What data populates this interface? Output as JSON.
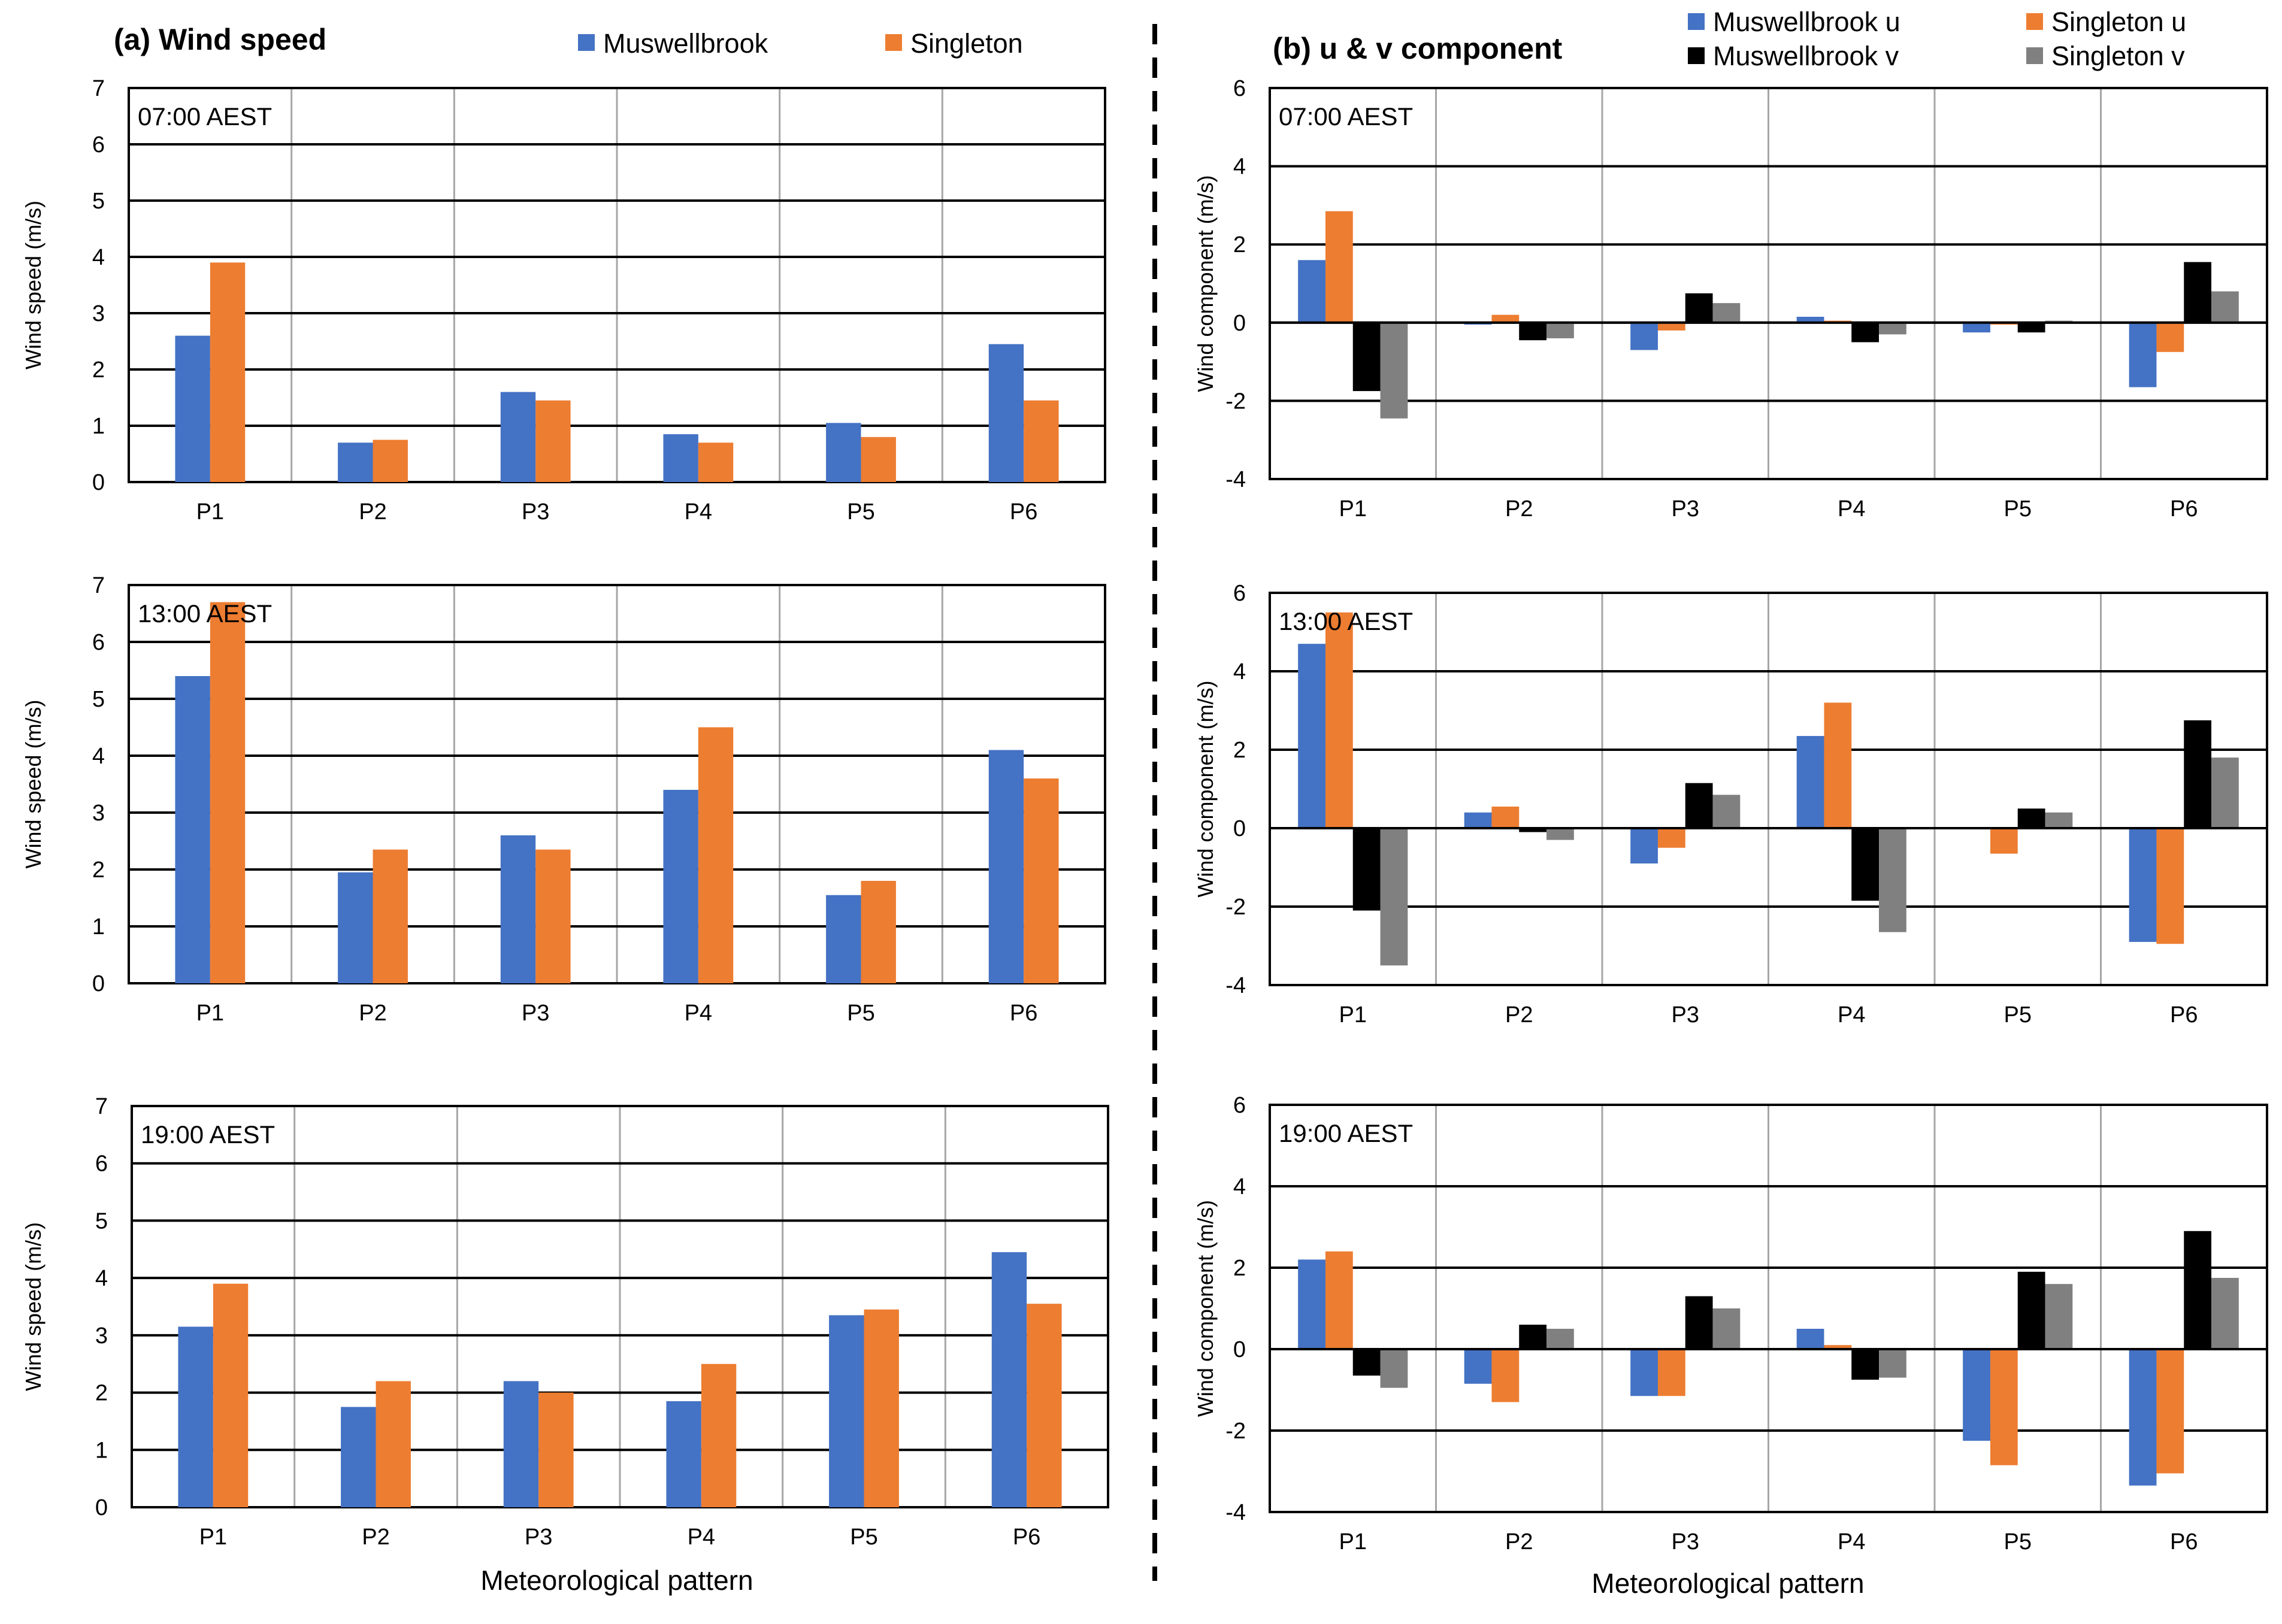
{
  "figure": {
    "divider": "dashed vertical line",
    "colors": {
      "muswellbrook": "#4472C4",
      "singleton": "#ED7D31",
      "muswellbrook_v": "#000000",
      "singleton_v": "#808080",
      "grid_h": "#000000",
      "grid_v": "#A6A6A6"
    }
  },
  "panel_a": {
    "title": "(a) Wind speed",
    "legend": [
      "Muswellbrook",
      "Singleton"
    ],
    "ylabel": "Wind speed (m/s)",
    "xlabel": "Meteorological pattern"
  },
  "panel_b": {
    "title": "(b) u & v component",
    "legend": [
      "Muswellbrook u",
      "Singleton u",
      "Muswellbrook v",
      "Singleton v"
    ],
    "ylabel": "Wind component (m/s)",
    "xlabel": "Meteorological pattern"
  },
  "chart_data": [
    {
      "type": "bar",
      "panel": "a",
      "label": "07:00 AEST",
      "categories": [
        "P1",
        "P2",
        "P3",
        "P4",
        "P5",
        "P6"
      ],
      "ylabel": "Wind speed (m/s)",
      "xlabel": "",
      "ylim": [
        0,
        7
      ],
      "yticks": [
        0,
        1,
        2,
        3,
        4,
        5,
        6,
        7
      ],
      "series": [
        {
          "name": "Muswellbrook",
          "color": "#4472C4",
          "values": [
            2.6,
            0.7,
            1.6,
            0.85,
            1.05,
            2.45
          ]
        },
        {
          "name": "Singleton",
          "color": "#ED7D31",
          "values": [
            3.9,
            0.75,
            1.45,
            0.7,
            0.8,
            1.45
          ]
        }
      ]
    },
    {
      "type": "bar",
      "panel": "a",
      "label": "13:00 AEST",
      "categories": [
        "P1",
        "P2",
        "P3",
        "P4",
        "P5",
        "P6"
      ],
      "ylabel": "Wind speed (m/s)",
      "xlabel": "",
      "ylim": [
        0,
        7
      ],
      "yticks": [
        0,
        1,
        2,
        3,
        4,
        5,
        6,
        7
      ],
      "series": [
        {
          "name": "Muswellbrook",
          "color": "#4472C4",
          "values": [
            5.4,
            1.95,
            2.6,
            3.4,
            1.55,
            4.1
          ]
        },
        {
          "name": "Singleton",
          "color": "#ED7D31",
          "values": [
            6.7,
            2.35,
            2.35,
            4.5,
            1.8,
            3.6
          ]
        }
      ]
    },
    {
      "type": "bar",
      "panel": "a",
      "label": "19:00 AEST",
      "categories": [
        "P1",
        "P2",
        "P3",
        "P4",
        "P5",
        "P6"
      ],
      "ylabel": "Wind speed (m/s)",
      "xlabel": "Meteorological pattern",
      "ylim": [
        0,
        7
      ],
      "yticks": [
        0,
        1,
        2,
        3,
        4,
        5,
        6,
        7
      ],
      "series": [
        {
          "name": "Muswellbrook",
          "color": "#4472C4",
          "values": [
            3.15,
            1.75,
            2.2,
            1.85,
            3.35,
            4.45
          ]
        },
        {
          "name": "Singleton",
          "color": "#ED7D31",
          "values": [
            3.9,
            2.2,
            2.0,
            2.5,
            3.45,
            3.55
          ]
        }
      ]
    },
    {
      "type": "bar",
      "panel": "b",
      "label": "07:00 AEST",
      "categories": [
        "P1",
        "P2",
        "P3",
        "P4",
        "P5",
        "P6"
      ],
      "ylabel": "Wind component (m/s)",
      "xlabel": "",
      "ylim": [
        -4,
        6
      ],
      "yticks": [
        -4,
        -2,
        0,
        2,
        4,
        6
      ],
      "series": [
        {
          "name": "Muswellbrook u",
          "color": "#4472C4",
          "values": [
            1.6,
            -0.05,
            -0.7,
            0.15,
            -0.25,
            -1.65
          ]
        },
        {
          "name": "Singleton u",
          "color": "#ED7D31",
          "values": [
            2.85,
            0.2,
            -0.2,
            0.05,
            -0.05,
            -0.75
          ]
        },
        {
          "name": "Muswellbrook v",
          "color": "#000000",
          "values": [
            -1.75,
            -0.45,
            0.75,
            -0.5,
            -0.25,
            1.55
          ]
        },
        {
          "name": "Singleton v",
          "color": "#808080",
          "values": [
            -2.45,
            -0.4,
            0.5,
            -0.3,
            0.05,
            0.8
          ]
        }
      ]
    },
    {
      "type": "bar",
      "panel": "b",
      "label": "13:00 AEST",
      "categories": [
        "P1",
        "P2",
        "P3",
        "P4",
        "P5",
        "P6"
      ],
      "ylabel": "Wind component (m/s)",
      "xlabel": "",
      "ylim": [
        -4,
        6
      ],
      "yticks": [
        -4,
        -2,
        0,
        2,
        4,
        6
      ],
      "series": [
        {
          "name": "Muswellbrook u",
          "color": "#4472C4",
          "values": [
            4.7,
            0.4,
            -0.9,
            2.35,
            0.0,
            -2.9
          ]
        },
        {
          "name": "Singleton u",
          "color": "#ED7D31",
          "values": [
            5.5,
            0.55,
            -0.5,
            3.2,
            -0.65,
            -2.95
          ]
        },
        {
          "name": "Muswellbrook v",
          "color": "#000000",
          "values": [
            -2.1,
            -0.1,
            1.15,
            -1.85,
            0.5,
            2.75
          ]
        },
        {
          "name": "Singleton v",
          "color": "#808080",
          "values": [
            -3.5,
            -0.3,
            0.85,
            -2.65,
            0.4,
            1.8
          ]
        }
      ]
    },
    {
      "type": "bar",
      "panel": "b",
      "label": "19:00 AEST",
      "categories": [
        "P1",
        "P2",
        "P3",
        "P4",
        "P5",
        "P6"
      ],
      "ylabel": "Wind component (m/s)",
      "xlabel": "Meteorological pattern",
      "ylim": [
        -4,
        6
      ],
      "yticks": [
        -4,
        -2,
        0,
        2,
        4,
        6
      ],
      "series": [
        {
          "name": "Muswellbrook u",
          "color": "#4472C4",
          "values": [
            2.2,
            -0.85,
            -1.15,
            0.5,
            -2.25,
            -3.35
          ]
        },
        {
          "name": "Singleton u",
          "color": "#ED7D31",
          "values": [
            2.4,
            -1.3,
            -1.15,
            0.1,
            -2.85,
            -3.05
          ]
        },
        {
          "name": "Muswellbrook v",
          "color": "#000000",
          "values": [
            -0.65,
            0.6,
            1.3,
            -0.75,
            1.9,
            2.9
          ]
        },
        {
          "name": "Singleton v",
          "color": "#808080",
          "values": [
            -0.95,
            0.5,
            1.0,
            -0.7,
            1.6,
            1.75
          ]
        }
      ]
    }
  ]
}
